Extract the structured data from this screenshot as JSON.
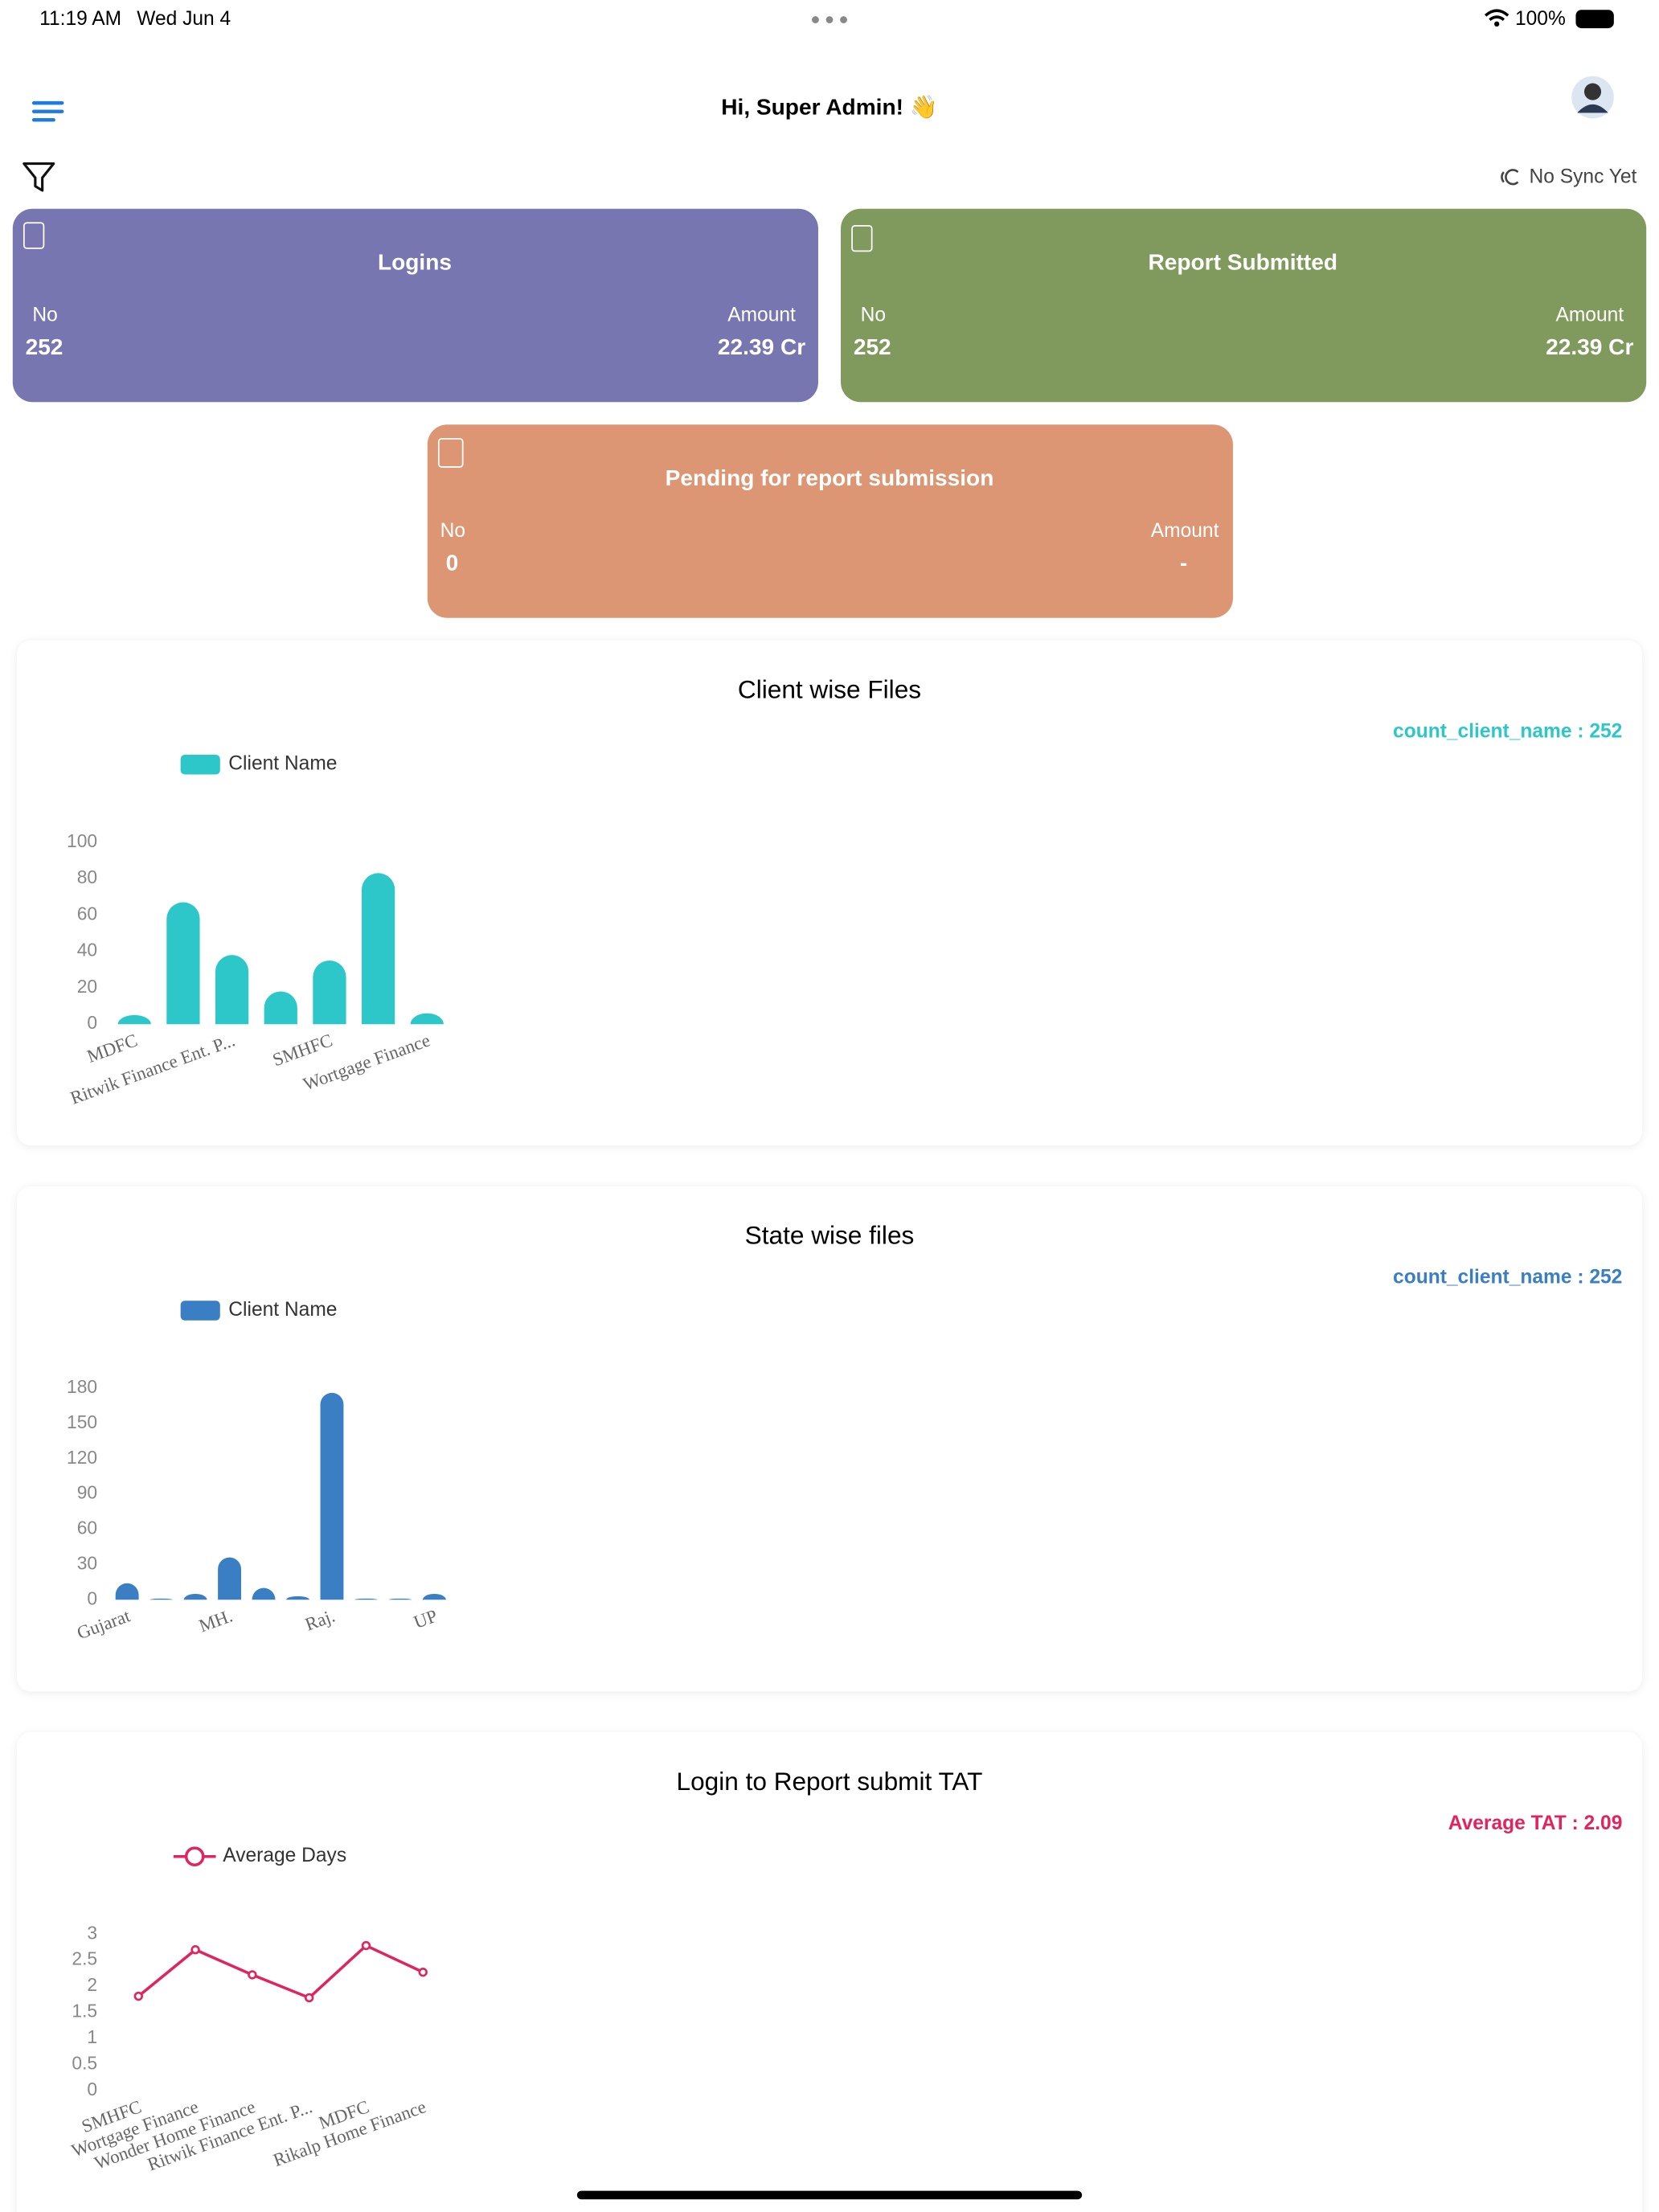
{
  "status_bar": {
    "time": "11:19 AM",
    "date": "Wed Jun 4",
    "battery": "100%"
  },
  "header": {
    "greeting": "Hi, Super Admin! 👋",
    "sync": "No Sync Yet"
  },
  "cards": [
    {
      "title": "Logins",
      "no_label": "No",
      "no": "252",
      "amount_label": "Amount",
      "amount": "22.39 Cr"
    },
    {
      "title": "Report Submitted",
      "no_label": "No",
      "no": "252",
      "amount_label": "Amount",
      "amount": "22.39 Cr"
    },
    {
      "title": "Pending for report submission",
      "no_label": "No",
      "no": "0",
      "amount_label": "Amount",
      "amount": "-"
    }
  ],
  "chart_data": [
    {
      "type": "bar",
      "title": "Client wise Files",
      "annotation": "count_client_name : 252",
      "categories": [
        "MDFC",
        null,
        "Ritwik Finance Ent. P...",
        null,
        "SMHFC",
        null,
        "Wortgage Finance"
      ],
      "series": [
        {
          "name": "Client Name",
          "color": "#2ec7c9",
          "values": [
            5,
            67,
            38,
            18,
            35,
            83,
            6
          ]
        }
      ],
      "ylim": [
        0,
        100
      ],
      "yticks": [
        0,
        20,
        40,
        60,
        80,
        100
      ]
    },
    {
      "type": "bar",
      "title": "State wise files",
      "annotation": "count_client_name : 252",
      "categories": [
        "Gujarat",
        null,
        null,
        "MH.",
        null,
        null,
        "Raj.",
        null,
        null,
        "UP"
      ],
      "series": [
        {
          "name": "Client Name",
          "color": "#3a7fc3",
          "values": [
            14,
            1,
            5,
            36,
            10,
            3,
            176,
            1,
            1,
            5
          ]
        }
      ],
      "ylim": [
        0,
        180
      ],
      "yticks": [
        0,
        30,
        60,
        90,
        120,
        150,
        180
      ]
    },
    {
      "type": "line",
      "title": "Login to Report submit TAT",
      "annotation": "Average TAT : 2.09",
      "categories": [
        "SMHFC",
        "Wortgage Finance",
        "Wonder Home Finance",
        "Ritwik Finance Ent. P...",
        "MDFC",
        "Rikalp Home Finance"
      ],
      "series": [
        {
          "name": "Average Days",
          "color": "#e0245e",
          "values": [
            1.81,
            2.7,
            2.22,
            1.78,
            2.78,
            2.27
          ]
        }
      ],
      "ylim": [
        0,
        3
      ],
      "yticks": [
        0,
        0.5,
        1,
        1.5,
        2,
        2.5,
        3
      ]
    }
  ]
}
